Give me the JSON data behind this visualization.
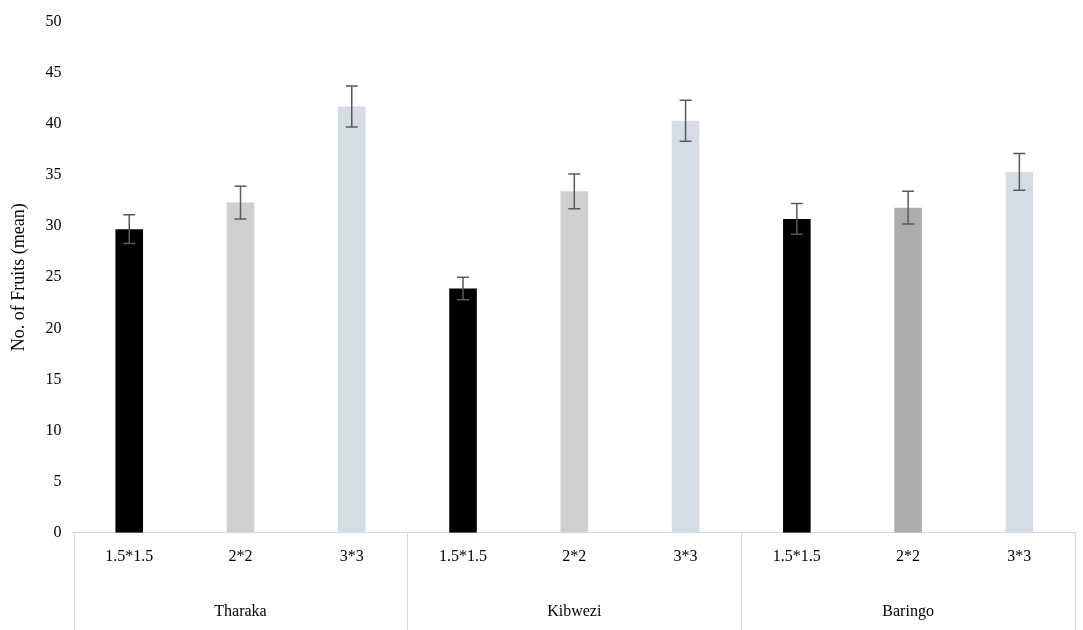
{
  "chart_data": {
    "type": "bar",
    "ylabel": "No. of Fruits (mean)",
    "categories": [
      "1.5*1.5",
      "2*2",
      "3*3",
      "1.5*1.5",
      "2*2",
      "3*3",
      "1.5*1.5",
      "2*2",
      "3*3"
    ],
    "values": [
      29.7,
      32.3,
      41.7,
      23.9,
      33.4,
      40.3,
      30.7,
      31.8,
      35.3
    ],
    "errors": [
      1.4,
      1.6,
      2.0,
      1.1,
      1.7,
      2.0,
      1.5,
      1.6,
      1.8
    ],
    "colors": [
      "#000000",
      "#d0cece",
      "#d6dce5",
      "#000000",
      "#d0cece",
      "#d6dce5",
      "#000000",
      "#aeabab",
      "#d6dce5"
    ],
    "annotations": [
      "Tharaka",
      "Kibwezi",
      "Baringo"
    ],
    "ylim": [
      0,
      50
    ],
    "yticks": [
      0,
      5,
      10,
      15,
      20,
      25,
      30,
      35,
      40,
      45,
      50
    ],
    "grid": false,
    "legend": false
  }
}
